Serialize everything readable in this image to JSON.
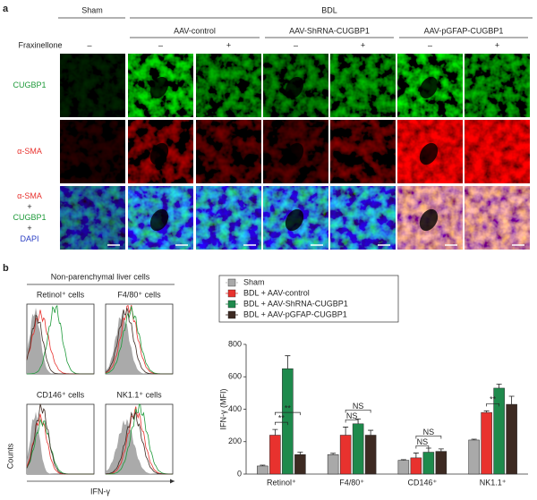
{
  "panel_a": {
    "letter": "a",
    "group_sham": "Sham",
    "group_bdl": "BDL",
    "subgroups": [
      "AAV-control",
      "AAV-ShRNA-CUGBP1",
      "AAV-pGFAP-CUGBP1"
    ],
    "treatment_label": "Fraxinellone",
    "conditions": [
      "–",
      "–",
      "+",
      "–",
      "+",
      "–",
      "+"
    ],
    "rows": [
      {
        "lines": [
          "CUGBP1"
        ]
      },
      {
        "lines": [
          "α-SMA"
        ]
      },
      {
        "lines": [
          "α-SMA",
          "+",
          "CUGBP1",
          "+",
          "DAPI"
        ]
      }
    ]
  },
  "panel_b": {
    "letter": "b",
    "header": "Non-parenchymal liver cells",
    "histograms": [
      "Retinol⁺ cells",
      "F4/80⁺ cells",
      "CD146⁺ cells",
      "NK1.1⁺ cells"
    ],
    "y_label": "Counts",
    "x_label": "IFN-γ"
  },
  "chart_data": {
    "type": "bar",
    "y_label": "IFN-γ (MFI)",
    "categories": [
      "Retinol⁺",
      "F4/80⁺",
      "CD146⁺",
      "NK1.1⁺"
    ],
    "series": [
      {
        "name": "Sham",
        "color": "#a9a9a9",
        "values": [
          50,
          120,
          85,
          210
        ],
        "errors": [
          5,
          8,
          4,
          5
        ]
      },
      {
        "name": "BDL + AAV-control",
        "color": "#e8322e",
        "values": [
          240,
          240,
          100,
          380
        ],
        "errors": [
          35,
          50,
          30,
          10
        ]
      },
      {
        "name": "BDL + AAV-ShRNA-CUGBP1",
        "color": "#1e8a4c",
        "values": [
          650,
          310,
          135,
          530
        ],
        "errors": [
          80,
          30,
          25,
          25
        ]
      },
      {
        "name": "BDL + AAV-pGFAP-CUGBP1",
        "color": "#3d2a22",
        "values": [
          120,
          240,
          140,
          430
        ],
        "errors": [
          15,
          30,
          15,
          50
        ]
      }
    ],
    "ylim": [
      0,
      800
    ],
    "yticks": [
      0,
      200,
      400,
      600,
      800
    ],
    "annotations": [
      {
        "text": "**",
        "category": 0,
        "series": [
          1,
          2
        ]
      },
      {
        "text": "**",
        "category": 0,
        "series": [
          1,
          3
        ]
      },
      {
        "text": "NS",
        "category": 1,
        "series": [
          1,
          2
        ]
      },
      {
        "text": "NS",
        "category": 1,
        "series": [
          1,
          3
        ]
      },
      {
        "text": "NS",
        "category": 2,
        "series": [
          1,
          2
        ]
      },
      {
        "text": "NS",
        "category": 2,
        "series": [
          1,
          3
        ]
      },
      {
        "text": "**",
        "category": 3,
        "series": [
          1,
          2
        ]
      }
    ]
  }
}
